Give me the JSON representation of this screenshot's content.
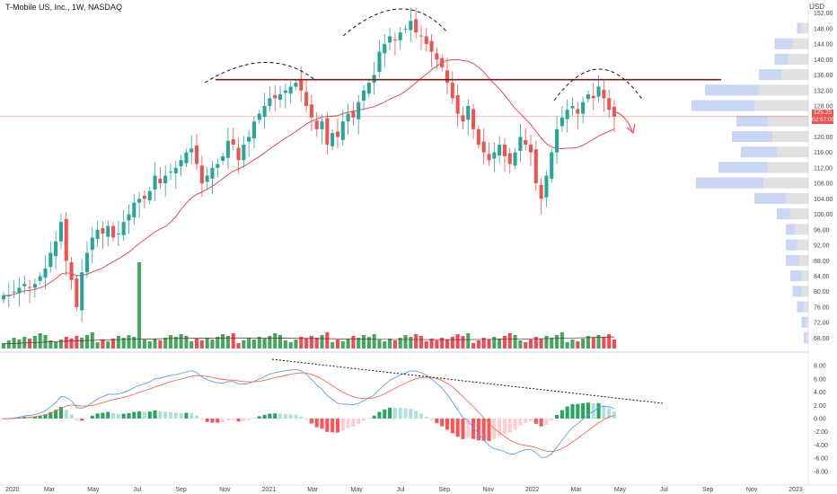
{
  "header": {
    "title": "T-Mobile US, Inc., 1W, NASDAQ",
    "currency": "USD"
  },
  "price_tag": {
    "price": "125.25",
    "countdown": "02:57:05"
  },
  "colors": {
    "up": "#26a69a",
    "down": "#ef5350",
    "vol_up": "#2e9e4f",
    "vol_down": "#f23645",
    "ma": "#f23645",
    "macd": "#5b9cf6",
    "signal": "#f26c4f",
    "hist_pos_strong": "#26a65b",
    "hist_pos_weak": "#b2dfdb",
    "hist_neg_strong": "#ff5252",
    "hist_neg_weak": "#ffcdd2",
    "resistance": "#7b1f1f",
    "vp_up": "#b7c9f0",
    "vp_down": "#c8c8c8"
  },
  "chart_data": [
    {
      "type": "candlestick",
      "title": "T-Mobile US, Inc., 1W, NASDAQ",
      "x_axis": {
        "labels": [
          "2020",
          "Mar",
          "May",
          "Jul",
          "Sep",
          "Nov",
          "2021",
          "Mar",
          "May",
          "Jul",
          "Sep",
          "Nov",
          "2022",
          "Mar",
          "May",
          "Jul",
          "Sep",
          "Nov",
          "2023"
        ]
      },
      "y_axis": {
        "labels": [
          "152.00",
          "148.00",
          "144.00",
          "140.00",
          "136.00",
          "132.00",
          "128.00",
          "124.00",
          "120.00",
          "116.00",
          "112.00",
          "108.00",
          "104.00",
          "100.00",
          "96.00",
          "92.00",
          "88.00",
          "84.00",
          "80.00",
          "76.00",
          "72.00",
          "68.00"
        ],
        "range": [
          66,
          154
        ]
      },
      "current_price": 125.25,
      "resistance_level": 134.8,
      "weekly_close": [
        79,
        79,
        80,
        81,
        82,
        81,
        82,
        84,
        86,
        90,
        93,
        98,
        88,
        83,
        76,
        85,
        90,
        94,
        96,
        95,
        97,
        94,
        95,
        98,
        100,
        103,
        104,
        104,
        106,
        110,
        108,
        110,
        111,
        112,
        114,
        116,
        117,
        113,
        108,
        110,
        112,
        113,
        115,
        119,
        118,
        114,
        118,
        120,
        124,
        126,
        128,
        130,
        130,
        131,
        132,
        133,
        134,
        132,
        128,
        125,
        122,
        124,
        118,
        121,
        120,
        124,
        126,
        125,
        129,
        132,
        134,
        136,
        142,
        144,
        146,
        145,
        147,
        148,
        150,
        147,
        146,
        144,
        142,
        140,
        138,
        134,
        130,
        126,
        124,
        128,
        122,
        118,
        116,
        114,
        116,
        118,
        115,
        113,
        116,
        120,
        118,
        116,
        108,
        104,
        110,
        116,
        122,
        125,
        127,
        128,
        126,
        129,
        131,
        130,
        133,
        130,
        127,
        125.25
      ],
      "volume_profile_levels": [
        148,
        144,
        140,
        136,
        132,
        128,
        124,
        120,
        116,
        112,
        108,
        104,
        100,
        96,
        92,
        88,
        84,
        80,
        76,
        72,
        68
      ]
    },
    {
      "type": "bar",
      "name": "Volume",
      "spike_week_index": 26
    },
    {
      "type": "line",
      "name": "MACD",
      "y_axis": {
        "labels": [
          "8.00",
          "6.00",
          "4.00",
          "2.00",
          "0.00",
          "-2.00",
          "-4.00",
          "-6.00",
          "-8.00"
        ],
        "range": [
          -9.5,
          9.5
        ]
      }
    }
  ]
}
